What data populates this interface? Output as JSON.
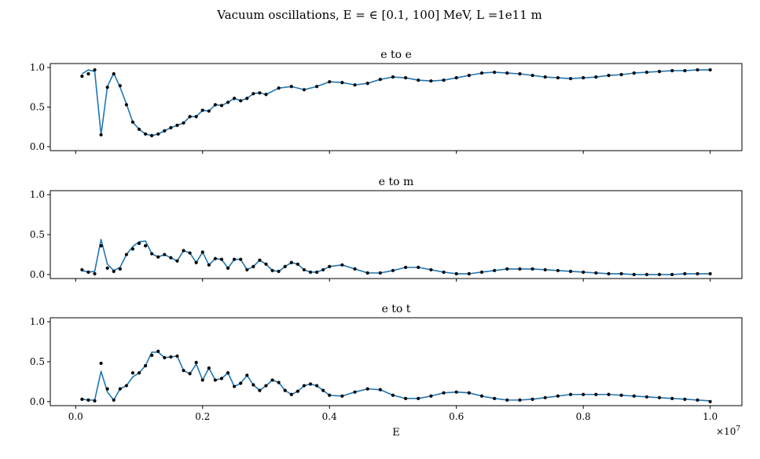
{
  "figure": {
    "suptitle": "Vacuum oscillations, E = ∈ [0.1, 100] MeV, L =1e11 m",
    "xlabel": "E",
    "x_offset_text": "×10",
    "x_offset_exponent": "7",
    "line_color": "#1f77b4",
    "marker_color": "#000000"
  },
  "chart_data": [
    {
      "type": "line",
      "title": "e to e",
      "xlim": [
        -0.04,
        1.05
      ],
      "ylim": [
        -0.05,
        1.05
      ],
      "xticks": [
        0.0,
        0.2,
        0.4,
        0.6,
        0.8,
        1.0
      ],
      "xtick_labels": [
        "0.0",
        "0.2",
        "0.4",
        "0.6",
        "0.8",
        "1.0"
      ],
      "show_xtick_labels": false,
      "yticks": [
        0.0,
        0.5,
        1.0
      ],
      "ytick_labels": [
        "0.0",
        "0.5",
        "1.0"
      ],
      "series": [
        {
          "name": "curve",
          "style": "line",
          "x": [
            0.01,
            0.02,
            0.03,
            0.04,
            0.05,
            0.06,
            0.07,
            0.08,
            0.09,
            0.1,
            0.11,
            0.12,
            0.13,
            0.14,
            0.15,
            0.16,
            0.17,
            0.18,
            0.19,
            0.2,
            0.21,
            0.22,
            0.23,
            0.24,
            0.25,
            0.26,
            0.27,
            0.28,
            0.29,
            0.3,
            0.32,
            0.34,
            0.36,
            0.38,
            0.4,
            0.42,
            0.44,
            0.46,
            0.48,
            0.5,
            0.52,
            0.54,
            0.56,
            0.58,
            0.6,
            0.62,
            0.64,
            0.66,
            0.68,
            0.7,
            0.72,
            0.74,
            0.76,
            0.78,
            0.8,
            0.82,
            0.84,
            0.86,
            0.88,
            0.9,
            0.92,
            0.94,
            0.96,
            0.98,
            1.0
          ],
          "y": [
            0.92,
            0.97,
            0.95,
            0.15,
            0.76,
            0.93,
            0.75,
            0.54,
            0.31,
            0.22,
            0.16,
            0.14,
            0.16,
            0.2,
            0.24,
            0.27,
            0.3,
            0.38,
            0.38,
            0.46,
            0.45,
            0.53,
            0.52,
            0.56,
            0.61,
            0.58,
            0.61,
            0.67,
            0.68,
            0.66,
            0.74,
            0.76,
            0.72,
            0.76,
            0.82,
            0.81,
            0.78,
            0.8,
            0.85,
            0.88,
            0.87,
            0.84,
            0.83,
            0.84,
            0.87,
            0.9,
            0.93,
            0.94,
            0.93,
            0.92,
            0.9,
            0.88,
            0.87,
            0.86,
            0.87,
            0.88,
            0.9,
            0.91,
            0.93,
            0.94,
            0.95,
            0.96,
            0.96,
            0.97,
            0.97
          ]
        },
        {
          "name": "points",
          "style": "scatter",
          "x": [
            0.01,
            0.02,
            0.03,
            0.04,
            0.05,
            0.06,
            0.07,
            0.08,
            0.09,
            0.1,
            0.11,
            0.12,
            0.13,
            0.14,
            0.15,
            0.16,
            0.17,
            0.18,
            0.19,
            0.2,
            0.21,
            0.22,
            0.23,
            0.24,
            0.25,
            0.26,
            0.27,
            0.28,
            0.29,
            0.3,
            0.32,
            0.34,
            0.36,
            0.38,
            0.4,
            0.42,
            0.44,
            0.46,
            0.48,
            0.5,
            0.52,
            0.54,
            0.56,
            0.58,
            0.6,
            0.62,
            0.64,
            0.66,
            0.68,
            0.7,
            0.72,
            0.74,
            0.76,
            0.78,
            0.8,
            0.82,
            0.84,
            0.86,
            0.88,
            0.9,
            0.92,
            0.94,
            0.96,
            0.98,
            1.0
          ],
          "y": [
            0.89,
            0.92,
            0.97,
            0.15,
            0.75,
            0.92,
            0.77,
            0.53,
            0.31,
            0.22,
            0.16,
            0.14,
            0.16,
            0.2,
            0.24,
            0.27,
            0.3,
            0.38,
            0.38,
            0.46,
            0.45,
            0.53,
            0.52,
            0.56,
            0.61,
            0.58,
            0.61,
            0.67,
            0.68,
            0.66,
            0.74,
            0.76,
            0.72,
            0.76,
            0.82,
            0.81,
            0.78,
            0.8,
            0.85,
            0.88,
            0.87,
            0.84,
            0.83,
            0.84,
            0.87,
            0.9,
            0.93,
            0.94,
            0.93,
            0.92,
            0.9,
            0.88,
            0.87,
            0.86,
            0.87,
            0.88,
            0.9,
            0.91,
            0.93,
            0.94,
            0.95,
            0.96,
            0.96,
            0.97,
            0.97
          ]
        }
      ]
    },
    {
      "type": "line",
      "title": "e to m",
      "xlim": [
        -0.04,
        1.05
      ],
      "ylim": [
        -0.05,
        1.05
      ],
      "xticks": [
        0.0,
        0.2,
        0.4,
        0.6,
        0.8,
        1.0
      ],
      "xtick_labels": [
        "0.0",
        "0.2",
        "0.4",
        "0.6",
        "0.8",
        "1.0"
      ],
      "show_xtick_labels": false,
      "yticks": [
        0.0,
        0.5,
        1.0
      ],
      "ytick_labels": [
        "0.0",
        "0.5",
        "1.0"
      ],
      "series": [
        {
          "name": "curve",
          "style": "line",
          "x": [
            0.01,
            0.02,
            0.03,
            0.04,
            0.05,
            0.06,
            0.07,
            0.08,
            0.09,
            0.1,
            0.11,
            0.12,
            0.13,
            0.14,
            0.15,
            0.16,
            0.17,
            0.18,
            0.19,
            0.2,
            0.21,
            0.22,
            0.23,
            0.24,
            0.25,
            0.26,
            0.27,
            0.28,
            0.29,
            0.3,
            0.31,
            0.32,
            0.33,
            0.34,
            0.35,
            0.36,
            0.37,
            0.38,
            0.39,
            0.4,
            0.42,
            0.44,
            0.46,
            0.48,
            0.5,
            0.52,
            0.54,
            0.56,
            0.58,
            0.6,
            0.62,
            0.64,
            0.66,
            0.68,
            0.7,
            0.72,
            0.74,
            0.76,
            0.78,
            0.8,
            0.82,
            0.84,
            0.86,
            0.88,
            0.9,
            0.92,
            0.94,
            0.96,
            0.98,
            1.0
          ],
          "y": [
            0.05,
            0.03,
            0.04,
            0.44,
            0.13,
            0.05,
            0.09,
            0.25,
            0.35,
            0.41,
            0.42,
            0.26,
            0.22,
            0.25,
            0.21,
            0.17,
            0.3,
            0.27,
            0.15,
            0.28,
            0.12,
            0.2,
            0.19,
            0.08,
            0.19,
            0.19,
            0.06,
            0.1,
            0.18,
            0.13,
            0.05,
            0.04,
            0.1,
            0.15,
            0.13,
            0.06,
            0.03,
            0.03,
            0.06,
            0.1,
            0.12,
            0.07,
            0.02,
            0.02,
            0.05,
            0.09,
            0.09,
            0.06,
            0.03,
            0.01,
            0.01,
            0.03,
            0.05,
            0.07,
            0.07,
            0.07,
            0.06,
            0.05,
            0.04,
            0.03,
            0.02,
            0.01,
            0.01,
            0.0,
            0.0,
            0.0,
            0.0,
            0.01,
            0.01,
            0.01
          ]
        },
        {
          "name": "points",
          "style": "scatter",
          "x": [
            0.01,
            0.02,
            0.03,
            0.04,
            0.05,
            0.06,
            0.07,
            0.08,
            0.09,
            0.1,
            0.11,
            0.12,
            0.13,
            0.14,
            0.15,
            0.16,
            0.17,
            0.18,
            0.19,
            0.2,
            0.21,
            0.22,
            0.23,
            0.24,
            0.25,
            0.26,
            0.27,
            0.28,
            0.29,
            0.3,
            0.31,
            0.32,
            0.33,
            0.34,
            0.35,
            0.36,
            0.37,
            0.38,
            0.39,
            0.4,
            0.42,
            0.44,
            0.46,
            0.48,
            0.5,
            0.52,
            0.54,
            0.56,
            0.58,
            0.6,
            0.62,
            0.64,
            0.66,
            0.68,
            0.7,
            0.72,
            0.74,
            0.76,
            0.78,
            0.8,
            0.82,
            0.84,
            0.86,
            0.88,
            0.9,
            0.92,
            0.94,
            0.96,
            0.98,
            1.0
          ],
          "y": [
            0.06,
            0.03,
            0.01,
            0.36,
            0.08,
            0.04,
            0.07,
            0.25,
            0.32,
            0.39,
            0.36,
            0.26,
            0.22,
            0.25,
            0.21,
            0.17,
            0.3,
            0.27,
            0.15,
            0.28,
            0.12,
            0.2,
            0.19,
            0.08,
            0.19,
            0.19,
            0.06,
            0.1,
            0.18,
            0.13,
            0.05,
            0.04,
            0.1,
            0.15,
            0.13,
            0.06,
            0.03,
            0.03,
            0.06,
            0.1,
            0.12,
            0.07,
            0.02,
            0.02,
            0.05,
            0.09,
            0.09,
            0.06,
            0.03,
            0.01,
            0.01,
            0.03,
            0.05,
            0.07,
            0.07,
            0.07,
            0.06,
            0.05,
            0.04,
            0.03,
            0.02,
            0.01,
            0.01,
            0.0,
            0.0,
            0.0,
            0.0,
            0.01,
            0.01,
            0.01
          ]
        }
      ]
    },
    {
      "type": "line",
      "title": "e to t",
      "xlim": [
        -0.04,
        1.05
      ],
      "ylim": [
        -0.05,
        1.05
      ],
      "xticks": [
        0.0,
        0.2,
        0.4,
        0.6,
        0.8,
        1.0
      ],
      "xtick_labels": [
        "0.0",
        "0.2",
        "0.4",
        "0.6",
        "0.8",
        "1.0"
      ],
      "show_xtick_labels": true,
      "yticks": [
        0.0,
        0.5,
        1.0
      ],
      "ytick_labels": [
        "0.0",
        "0.5",
        "1.0"
      ],
      "series": [
        {
          "name": "curve",
          "style": "line",
          "x": [
            0.01,
            0.02,
            0.03,
            0.04,
            0.05,
            0.06,
            0.07,
            0.08,
            0.09,
            0.1,
            0.11,
            0.12,
            0.13,
            0.14,
            0.15,
            0.16,
            0.17,
            0.18,
            0.19,
            0.2,
            0.21,
            0.22,
            0.23,
            0.24,
            0.25,
            0.26,
            0.27,
            0.28,
            0.29,
            0.3,
            0.31,
            0.32,
            0.33,
            0.34,
            0.35,
            0.36,
            0.37,
            0.38,
            0.39,
            0.4,
            0.42,
            0.44,
            0.46,
            0.48,
            0.5,
            0.52,
            0.54,
            0.56,
            0.58,
            0.6,
            0.62,
            0.64,
            0.66,
            0.68,
            0.7,
            0.72,
            0.74,
            0.76,
            0.78,
            0.8,
            0.82,
            0.84,
            0.86,
            0.88,
            0.9,
            0.92,
            0.94,
            0.96,
            0.98,
            1.0
          ],
          "y": [
            0.03,
            0.02,
            0.02,
            0.38,
            0.12,
            0.02,
            0.16,
            0.2,
            0.31,
            0.36,
            0.45,
            0.62,
            0.62,
            0.55,
            0.56,
            0.57,
            0.39,
            0.35,
            0.47,
            0.27,
            0.42,
            0.27,
            0.29,
            0.36,
            0.19,
            0.23,
            0.33,
            0.21,
            0.14,
            0.2,
            0.27,
            0.24,
            0.14,
            0.09,
            0.13,
            0.2,
            0.22,
            0.2,
            0.14,
            0.08,
            0.07,
            0.12,
            0.16,
            0.15,
            0.08,
            0.04,
            0.04,
            0.07,
            0.11,
            0.12,
            0.11,
            0.07,
            0.04,
            0.02,
            0.02,
            0.03,
            0.05,
            0.07,
            0.09,
            0.09,
            0.09,
            0.09,
            0.08,
            0.07,
            0.06,
            0.05,
            0.04,
            0.03,
            0.02,
            0.01
          ]
        },
        {
          "name": "points",
          "style": "scatter",
          "x": [
            0.01,
            0.02,
            0.03,
            0.04,
            0.05,
            0.06,
            0.07,
            0.08,
            0.09,
            0.1,
            0.11,
            0.12,
            0.13,
            0.14,
            0.15,
            0.16,
            0.17,
            0.18,
            0.19,
            0.2,
            0.21,
            0.22,
            0.23,
            0.24,
            0.25,
            0.26,
            0.27,
            0.28,
            0.29,
            0.3,
            0.31,
            0.32,
            0.33,
            0.34,
            0.35,
            0.36,
            0.37,
            0.38,
            0.39,
            0.4,
            0.42,
            0.44,
            0.46,
            0.48,
            0.5,
            0.52,
            0.54,
            0.56,
            0.58,
            0.6,
            0.62,
            0.64,
            0.66,
            0.68,
            0.7,
            0.72,
            0.74,
            0.76,
            0.78,
            0.8,
            0.82,
            0.84,
            0.86,
            0.88,
            0.9,
            0.92,
            0.94,
            0.96,
            0.98,
            1.0
          ],
          "y": [
            0.03,
            0.02,
            0.01,
            0.48,
            0.16,
            0.02,
            0.16,
            0.2,
            0.36,
            0.36,
            0.45,
            0.58,
            0.63,
            0.55,
            0.56,
            0.57,
            0.39,
            0.35,
            0.49,
            0.27,
            0.42,
            0.27,
            0.29,
            0.36,
            0.19,
            0.23,
            0.33,
            0.21,
            0.14,
            0.2,
            0.27,
            0.24,
            0.14,
            0.09,
            0.13,
            0.2,
            0.22,
            0.2,
            0.14,
            0.08,
            0.07,
            0.12,
            0.16,
            0.15,
            0.08,
            0.04,
            0.04,
            0.07,
            0.11,
            0.12,
            0.11,
            0.07,
            0.04,
            0.02,
            0.02,
            0.03,
            0.05,
            0.07,
            0.09,
            0.09,
            0.09,
            0.09,
            0.08,
            0.07,
            0.06,
            0.05,
            0.04,
            0.03,
            0.02,
            0.0
          ]
        }
      ]
    }
  ]
}
